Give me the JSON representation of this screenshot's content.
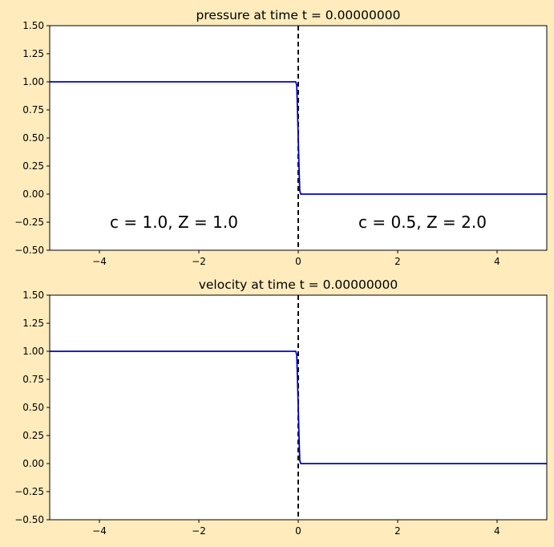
{
  "figure": {
    "background": "#ffebbc"
  },
  "chart_data": [
    {
      "type": "line",
      "title": "pressure at time t =     0.00000000",
      "xlabel": "",
      "ylabel": "",
      "xlim": [
        -5,
        5
      ],
      "ylim": [
        -0.5,
        1.5
      ],
      "xticks": [
        -4,
        -2,
        0,
        2,
        4
      ],
      "xtick_labels": [
        "−4",
        "−2",
        "0",
        "2",
        "4"
      ],
      "yticks": [
        -0.5,
        -0.25,
        0.0,
        0.25,
        0.5,
        0.75,
        1.0,
        1.25,
        1.5
      ],
      "ytick_labels": [
        "−0.50",
        "−0.25",
        "0.00",
        "0.25",
        "0.50",
        "0.75",
        "1.00",
        "1.25",
        "1.50"
      ],
      "grid": false,
      "series": [
        {
          "name": "pressure",
          "color": "#0000cc",
          "x": [
            -5,
            -0.05,
            -0.03,
            -0.015,
            0,
            0.015,
            0.03,
            0.05,
            5
          ],
          "y": [
            1.0,
            1.0,
            0.97,
            0.75,
            0.5,
            0.25,
            0.03,
            0.0,
            0.0
          ]
        }
      ],
      "vline": {
        "x": 0,
        "color": "#000000",
        "style": "dashed"
      },
      "annotations": [
        {
          "text": "c = 1.0,   Z = 1.0",
          "x": -2.5,
          "y": -0.25
        },
        {
          "text": "c = 0.5,   Z = 2.0",
          "x": 2.5,
          "y": -0.25
        }
      ]
    },
    {
      "type": "line",
      "title": "velocity at time t =     0.00000000",
      "xlabel": "",
      "ylabel": "",
      "xlim": [
        -5,
        5
      ],
      "ylim": [
        -0.5,
        1.5
      ],
      "xticks": [
        -4,
        -2,
        0,
        2,
        4
      ],
      "xtick_labels": [
        "−4",
        "−2",
        "0",
        "2",
        "4"
      ],
      "yticks": [
        -0.5,
        -0.25,
        0.0,
        0.25,
        0.5,
        0.75,
        1.0,
        1.25,
        1.5
      ],
      "ytick_labels": [
        "−0.50",
        "−0.25",
        "0.00",
        "0.25",
        "0.50",
        "0.75",
        "1.00",
        "1.25",
        "1.50"
      ],
      "grid": false,
      "series": [
        {
          "name": "velocity",
          "color": "#0000cc",
          "x": [
            -5,
            -0.05,
            -0.03,
            -0.015,
            0,
            0.015,
            0.03,
            0.05,
            5
          ],
          "y": [
            1.0,
            1.0,
            0.97,
            0.75,
            0.5,
            0.25,
            0.03,
            0.0,
            0.0
          ]
        }
      ],
      "vline": {
        "x": 0,
        "color": "#000000",
        "style": "dashed"
      },
      "annotations": []
    }
  ]
}
